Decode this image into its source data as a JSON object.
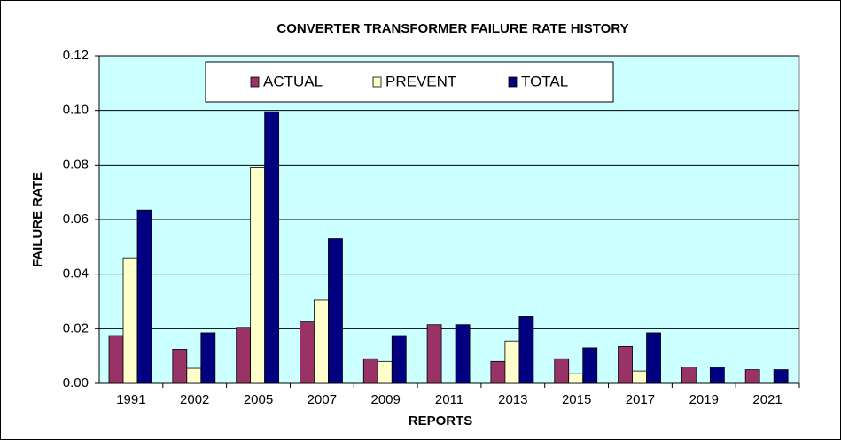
{
  "chart_data": {
    "type": "bar",
    "title": "CONVERTER TRANSFORMER  FAILURE RATE HISTORY",
    "x_label": "REPORTS",
    "y_label": "FAILURE RATE",
    "categories": [
      "1991",
      "2002",
      "2005",
      "2007",
      "2009",
      "2011",
      "2013",
      "2015",
      "2017",
      "2019",
      "2021"
    ],
    "series": [
      {
        "name": "ACTUAL",
        "color": "#993366",
        "values": [
          0.0175,
          0.0125,
          0.0205,
          0.0225,
          0.009,
          0.0215,
          0.008,
          0.009,
          0.0135,
          0.006,
          0.005
        ]
      },
      {
        "name": "PREVENT",
        "color": "#ffffcc",
        "values": [
          0.046,
          0.0055,
          0.079,
          0.0305,
          0.008,
          0,
          0.0155,
          0.0035,
          0.0045,
          0,
          0
        ]
      },
      {
        "name": "TOTAL",
        "color": "#000080",
        "values": [
          0.0635,
          0.0185,
          0.0995,
          0.053,
          0.0175,
          0.0215,
          0.0245,
          0.013,
          0.0185,
          0.006,
          0.005
        ]
      }
    ],
    "ylim": [
      0,
      0.12
    ],
    "yticks": [
      {
        "value": 0,
        "label": "0.00"
      },
      {
        "value": 0.02,
        "label": "0.02"
      },
      {
        "value": 0.04,
        "label": "0.04"
      },
      {
        "value": 0.06,
        "label": "0.06"
      },
      {
        "value": 0.08,
        "label": "0.08"
      },
      {
        "value": 0.1,
        "label": "0.10"
      },
      {
        "value": 0.12,
        "label": "0.12"
      }
    ],
    "grid": true,
    "legend": "top",
    "plot_background": "#ccffff"
  }
}
